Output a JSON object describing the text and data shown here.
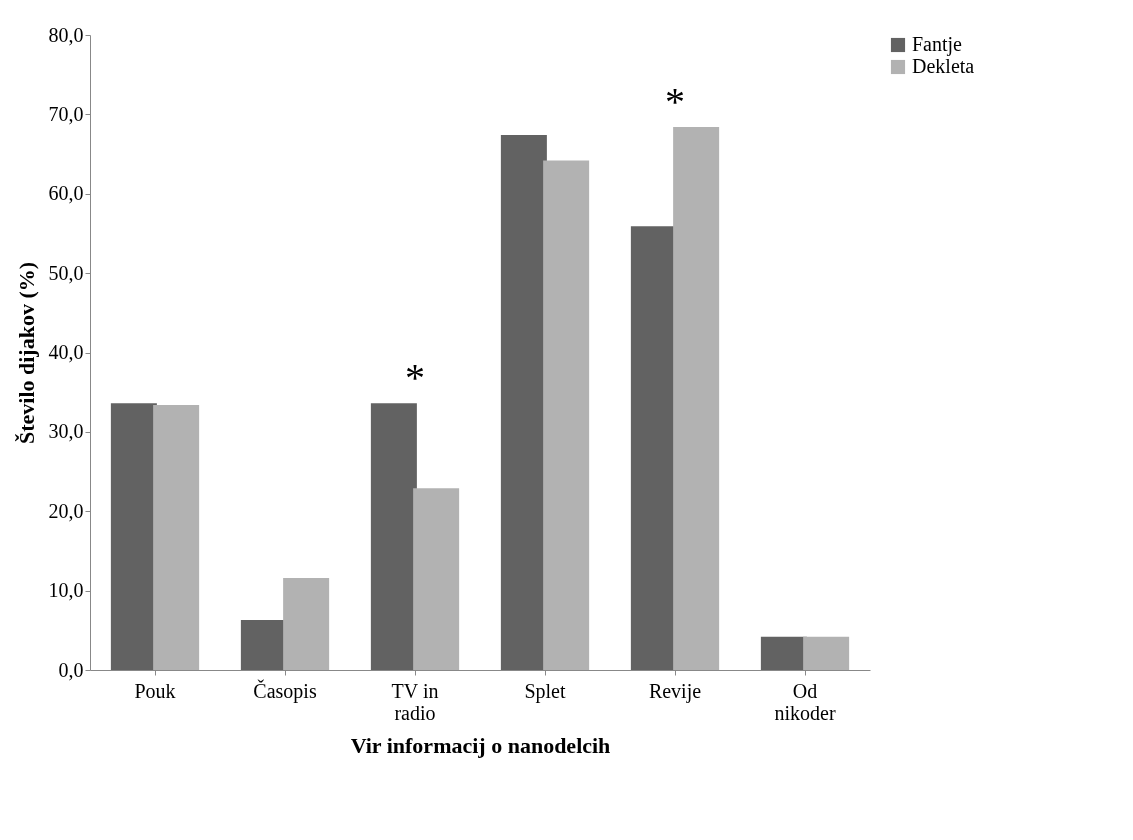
{
  "chart_data": {
    "type": "bar",
    "xlabel": "Vir informacij o nanodelcih",
    "ylabel": "Število dijakov (%)",
    "categories": [
      "Pouk",
      "Časopis",
      "TV in radio",
      "Splet",
      "Revije",
      "Od nikoder"
    ],
    "series": [
      {
        "name": "Fantje",
        "color": "#626262",
        "values": [
          33.6,
          6.3,
          33.6,
          67.4,
          55.9,
          4.2
        ]
      },
      {
        "name": "Dekleta",
        "color": "#b2b2b2",
        "values": [
          33.4,
          11.6,
          22.9,
          64.2,
          68.4,
          4.2
        ]
      }
    ],
    "ylim": [
      0,
      80
    ],
    "yticks": [
      {
        "value": 0,
        "label": "0,0"
      },
      {
        "value": 10,
        "label": "10,0"
      },
      {
        "value": 20,
        "label": "20,0"
      },
      {
        "value": 30,
        "label": "30,0"
      },
      {
        "value": 40,
        "label": "40,0"
      },
      {
        "value": 50,
        "label": "50,0"
      },
      {
        "value": 60,
        "label": "60,0"
      },
      {
        "value": 70,
        "label": "70,0"
      },
      {
        "value": 80,
        "label": "80,0"
      }
    ],
    "annotations": [
      {
        "text": "*",
        "x": "TV in radio",
        "y": 33.6
      },
      {
        "text": "*",
        "x": "Revije",
        "y": 68.4
      }
    ],
    "grid": false,
    "legend": "right"
  }
}
